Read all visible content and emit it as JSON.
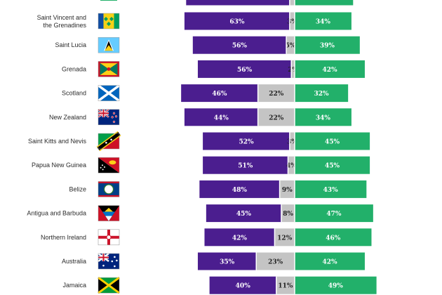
{
  "chart_data": {
    "type": "bar",
    "orientation": "horizontal",
    "stacked": true,
    "categories": [
      "Saint Vincent and the Grenadines",
      "Saint Lucia",
      "Grenada",
      "Scotland",
      "New Zealand",
      "Saint Kitts and Nevis",
      "Papua New Guinea",
      "Belize",
      "Antigua and Barbuda",
      "Northern Ireland",
      "Australia",
      "Jamaica"
    ],
    "series": [
      {
        "color": "#4b1e8f",
        "values": [
          63,
          56,
          56,
          46,
          44,
          52,
          51,
          48,
          45,
          42,
          35,
          40
        ]
      },
      {
        "color": "#c4c4c4",
        "values": [
          3,
          5,
          2,
          22,
          22,
          3,
          4,
          9,
          8,
          12,
          23,
          11
        ]
      },
      {
        "color": "#22b06a",
        "values": [
          34,
          39,
          42,
          32,
          34,
          45,
          45,
          43,
          47,
          46,
          42,
          49
        ]
      }
    ],
    "value_labels": [
      [
        "63%",
        "3%",
        "34%"
      ],
      [
        "56%",
        "5%",
        "39%"
      ],
      [
        "56%",
        "2%",
        "42%"
      ],
      [
        "46%",
        "22%",
        "32%"
      ],
      [
        "44%",
        "22%",
        "34%"
      ],
      [
        "52%",
        "3%",
        "45%"
      ],
      [
        "51%",
        "4%",
        "45%"
      ],
      [
        "48%",
        "9%",
        "43%"
      ],
      [
        "45%",
        "8%",
        "47%"
      ],
      [
        "42%",
        "12%",
        "46%"
      ],
      [
        "35%",
        "23%",
        "42%"
      ],
      [
        "40%",
        "11%",
        "49%"
      ]
    ],
    "flags": [
      "saint-vincent-and-the-grenadines-flag",
      "saint-lucia-flag",
      "grenada-flag",
      "scotland-flag",
      "new-zealand-flag",
      "saint-kitts-and-nevis-flag",
      "papua-new-guinea-flag",
      "belize-flag",
      "antigua-and-barbuda-flag",
      "northern-ireland-flag",
      "australia-flag",
      "jamaica-flag"
    ],
    "top_partial_row": {
      "series_values": [
        62,
        3,
        35
      ]
    },
    "xlim": [
      0,
      100
    ],
    "grid": false,
    "legend": "none"
  }
}
